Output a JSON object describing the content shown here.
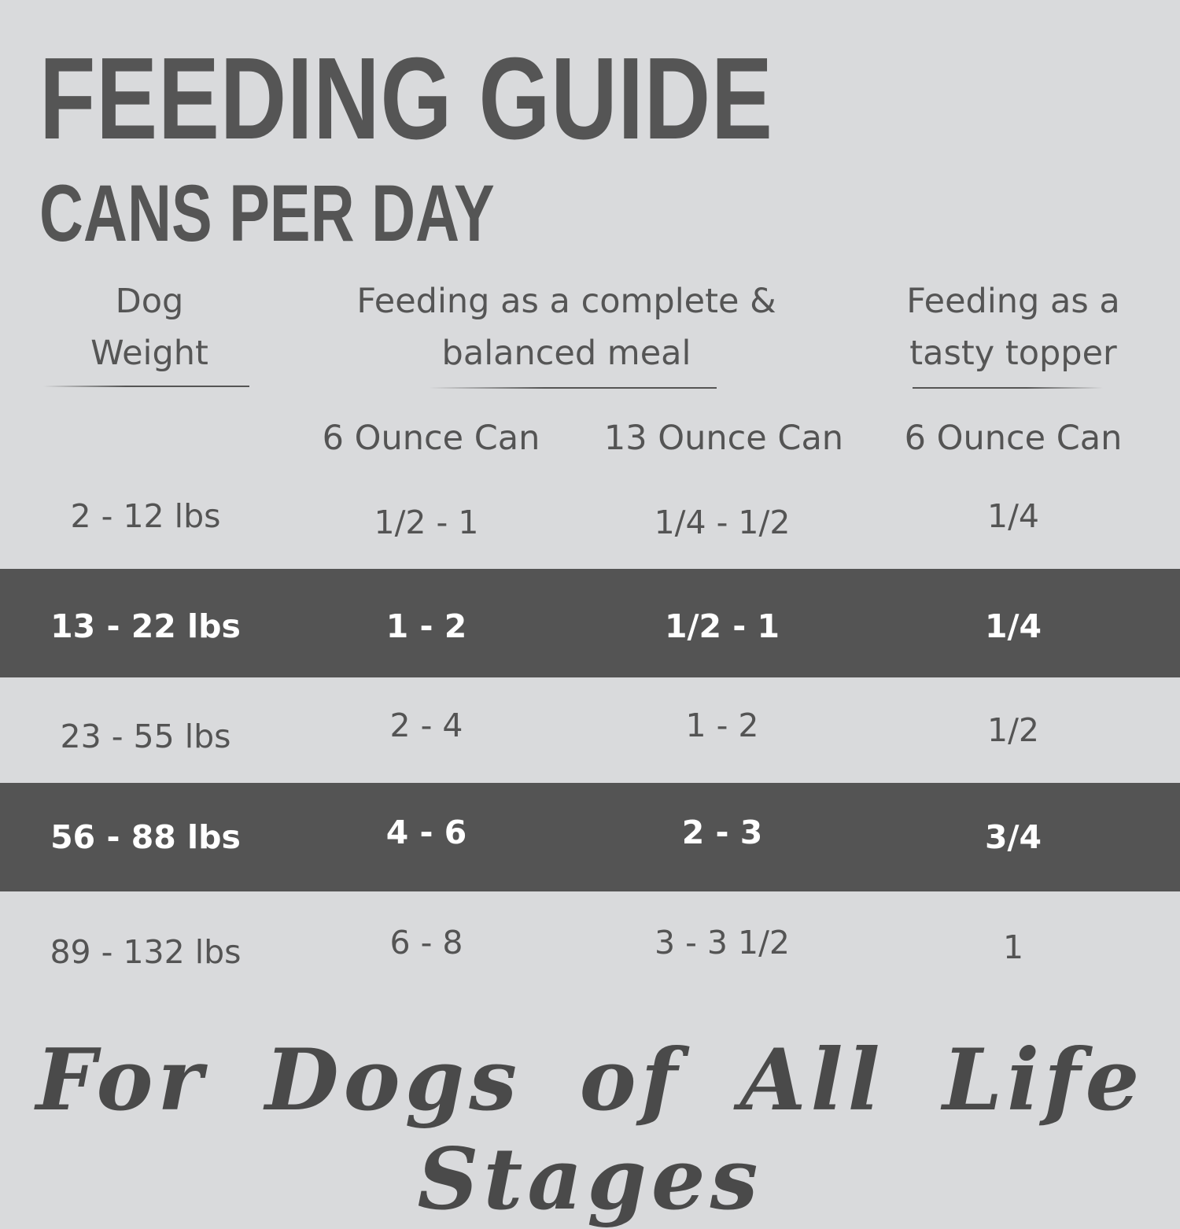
{
  "title": "FEEDING GUIDE",
  "subtitle": "CANS PER DAY",
  "headers": {
    "weight": [
      "Dog",
      "Weight"
    ],
    "complete": [
      "Feeding as a complete &",
      "balanced meal"
    ],
    "topper": [
      "Feeding as a",
      "tasty topper"
    ]
  },
  "subheaders": [
    "6 Ounce Can",
    "13 Ounce Can",
    "6 Ounce Can"
  ],
  "rows": [
    {
      "weight": "2 - 12 lbs",
      "complete_6oz": "1/2 - 1",
      "complete_13oz": "1/4 - 1/2",
      "topper_6oz": "1/4"
    },
    {
      "weight": "13 - 22 lbs",
      "complete_6oz": "1 - 2",
      "complete_13oz": "1/2 - 1",
      "topper_6oz": "1/4"
    },
    {
      "weight": "23 - 55 lbs",
      "complete_6oz": "2 - 4",
      "complete_13oz": "1 - 2",
      "topper_6oz": "1/2"
    },
    {
      "weight": "56 - 88 lbs",
      "complete_6oz": "4 - 6",
      "complete_13oz": "2 - 3",
      "topper_6oz": "3/4"
    },
    {
      "weight": "89 - 132 lbs",
      "complete_6oz": "6 - 8",
      "complete_13oz": "3 - 3 1/2",
      "topper_6oz": "1"
    }
  ],
  "footer": "For Dogs of All Life Stages",
  "colors": {
    "background": "#d9dadc",
    "band": "#545454",
    "text": "#545454"
  }
}
